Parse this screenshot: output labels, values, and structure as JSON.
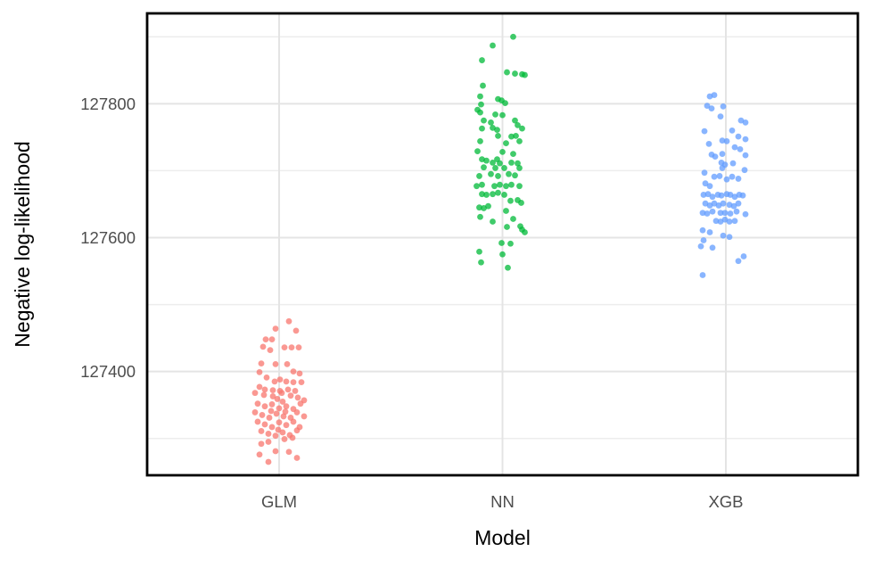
{
  "chart_data": {
    "type": "scatter",
    "subtype": "jittered-strip-plot",
    "title": "",
    "xlabel": "Model",
    "ylabel": "Negative log-likelihood",
    "categories": [
      "GLM",
      "NN",
      "XGB"
    ],
    "y_ticks": [
      127400,
      127600,
      127800
    ],
    "y_tick_labels": [
      "127400",
      "127600",
      "127800"
    ],
    "y_minor_ticks": [
      127300,
      127500,
      127700,
      127900
    ],
    "ylim": [
      127245,
      127935
    ],
    "grid": true,
    "legend": "none",
    "point_format": "[x_jitter_px, y_value]",
    "series": [
      {
        "name": "GLM",
        "color": "#F8766D",
        "points": [
          [
            11,
            127475
          ],
          [
            -4,
            127464
          ],
          [
            19,
            127461
          ],
          [
            -15,
            127448
          ],
          [
            -8,
            127448
          ],
          [
            -18,
            127437
          ],
          [
            -10,
            127432
          ],
          [
            6,
            127436
          ],
          [
            14,
            127436
          ],
          [
            22,
            127436
          ],
          [
            -20,
            127412
          ],
          [
            -4,
            127411
          ],
          [
            9,
            127411
          ],
          [
            -22,
            127399
          ],
          [
            16,
            127400
          ],
          [
            23,
            127397
          ],
          [
            -14,
            127391
          ],
          [
            -5,
            127385
          ],
          [
            1,
            127388
          ],
          [
            8,
            127385
          ],
          [
            16,
            127384
          ],
          [
            25,
            127384
          ],
          [
            -22,
            127377
          ],
          [
            -16,
            127373
          ],
          [
            -7,
            127372
          ],
          [
            1,
            127371
          ],
          [
            10,
            127373
          ],
          [
            18,
            127371
          ],
          [
            -27,
            127368
          ],
          [
            -17,
            127365
          ],
          [
            -7,
            127363
          ],
          [
            3,
            127368
          ],
          [
            13,
            127364
          ],
          [
            21,
            127361
          ],
          [
            28,
            127357
          ],
          [
            -24,
            127352
          ],
          [
            -16,
            127348
          ],
          [
            -8,
            127351
          ],
          [
            0,
            127345
          ],
          [
            8,
            127348
          ],
          [
            16,
            127344
          ],
          [
            24,
            127352
          ],
          [
            -2,
            127359
          ],
          [
            4,
            127355
          ],
          [
            -27,
            127339
          ],
          [
            -19,
            127335
          ],
          [
            -11,
            127331
          ],
          [
            -3,
            127337
          ],
          [
            5,
            127333
          ],
          [
            13,
            127331
          ],
          [
            20,
            127339
          ],
          [
            28,
            127333
          ],
          [
            -9,
            127341
          ],
          [
            7,
            127340
          ],
          [
            -24,
            127325
          ],
          [
            -16,
            127321
          ],
          [
            -8,
            127317
          ],
          [
            0,
            127324
          ],
          [
            8,
            127320
          ],
          [
            16,
            127325
          ],
          [
            23,
            127317
          ],
          [
            -1,
            127313
          ],
          [
            -20,
            127311
          ],
          [
            -12,
            127307
          ],
          [
            -4,
            127304
          ],
          [
            4,
            127309
          ],
          [
            12,
            127305
          ],
          [
            20,
            127312
          ],
          [
            15,
            127301
          ],
          [
            6,
            127299
          ],
          [
            -20,
            127292
          ],
          [
            -12,
            127295
          ],
          [
            -4,
            127281
          ],
          [
            11,
            127280
          ],
          [
            -22,
            127276
          ],
          [
            20,
            127271
          ],
          [
            -12,
            127265
          ]
        ]
      },
      {
        "name": "NN",
        "color": "#00BA38",
        "points": [
          [
            12,
            127900
          ],
          [
            -11,
            127887
          ],
          [
            -23,
            127865
          ],
          [
            5,
            127847
          ],
          [
            14,
            127845
          ],
          [
            22,
            127844
          ],
          [
            25,
            127843
          ],
          [
            -22,
            127827
          ],
          [
            -25,
            127811
          ],
          [
            -5,
            127807
          ],
          [
            -1,
            127805
          ],
          [
            3,
            127801
          ],
          [
            -24,
            127799
          ],
          [
            -28,
            127791
          ],
          [
            -25,
            127787
          ],
          [
            -8,
            127784
          ],
          [
            0,
            127783
          ],
          [
            14,
            127775
          ],
          [
            -21,
            127775
          ],
          [
            -13,
            127772
          ],
          [
            17,
            127768
          ],
          [
            22,
            127763
          ],
          [
            -11,
            127764
          ],
          [
            -6,
            127761
          ],
          [
            -23,
            127763
          ],
          [
            -5,
            127752
          ],
          [
            10,
            127751
          ],
          [
            15,
            127752
          ],
          [
            -25,
            127744
          ],
          [
            4,
            127741
          ],
          [
            19,
            127744
          ],
          [
            -28,
            127729
          ],
          [
            0,
            127728
          ],
          [
            12,
            127725
          ],
          [
            -18,
            127715
          ],
          [
            -11,
            127712
          ],
          [
            -3,
            127711
          ],
          [
            10,
            127712
          ],
          [
            17,
            127711
          ],
          [
            -23,
            127717
          ],
          [
            -6,
            127717
          ],
          [
            -21,
            127705
          ],
          [
            -8,
            127704
          ],
          [
            2,
            127704
          ],
          [
            19,
            127704
          ],
          [
            -26,
            127692
          ],
          [
            -13,
            127695
          ],
          [
            -5,
            127692
          ],
          [
            7,
            127695
          ],
          [
            14,
            127693
          ],
          [
            -29,
            127677
          ],
          [
            -23,
            127679
          ],
          [
            -9,
            127677
          ],
          [
            -3,
            127679
          ],
          [
            4,
            127677
          ],
          [
            10,
            127679
          ],
          [
            19,
            127677
          ],
          [
            -23,
            127665
          ],
          [
            -18,
            127664
          ],
          [
            -11,
            127665
          ],
          [
            -5,
            127667
          ],
          [
            2,
            127664
          ],
          [
            9,
            127655
          ],
          [
            17,
            127656
          ],
          [
            21,
            127652
          ],
          [
            -26,
            127645
          ],
          [
            -21,
            127644
          ],
          [
            -16,
            127647
          ],
          [
            4,
            127640
          ],
          [
            -25,
            127631
          ],
          [
            -11,
            127624
          ],
          [
            12,
            127628
          ],
          [
            5,
            127616
          ],
          [
            20,
            127617
          ],
          [
            22,
            127612
          ],
          [
            25,
            127608
          ],
          [
            -1,
            127592
          ],
          [
            9,
            127591
          ],
          [
            -26,
            127579
          ],
          [
            0,
            127575
          ],
          [
            -24,
            127563
          ],
          [
            6,
            127555
          ]
        ]
      },
      {
        "name": "XGB",
        "color": "#619CFF",
        "points": [
          [
            -18,
            127811
          ],
          [
            -13,
            127813
          ],
          [
            -21,
            127797
          ],
          [
            -16,
            127793
          ],
          [
            -3,
            127796
          ],
          [
            -6,
            127781
          ],
          [
            17,
            127775
          ],
          [
            22,
            127772
          ],
          [
            -24,
            127759
          ],
          [
            7,
            127760
          ],
          [
            14,
            127751
          ],
          [
            22,
            127747
          ],
          [
            -19,
            127740
          ],
          [
            -4,
            127745
          ],
          [
            1,
            127744
          ],
          [
            10,
            127735
          ],
          [
            16,
            127732
          ],
          [
            -16,
            127724
          ],
          [
            -12,
            127721
          ],
          [
            -4,
            127725
          ],
          [
            22,
            127723
          ],
          [
            -5,
            127712
          ],
          [
            -1,
            127709
          ],
          [
            -4,
            127704
          ],
          [
            8,
            127711
          ],
          [
            21,
            127701
          ],
          [
            -24,
            127697
          ],
          [
            -13,
            127691
          ],
          [
            -7,
            127692
          ],
          [
            1,
            127687
          ],
          [
            7,
            127691
          ],
          [
            14,
            127688
          ],
          [
            -23,
            127681
          ],
          [
            -18,
            127677
          ],
          [
            -25,
            127664
          ],
          [
            -20,
            127665
          ],
          [
            -15,
            127661
          ],
          [
            -9,
            127664
          ],
          [
            -5,
            127663
          ],
          [
            1,
            127665
          ],
          [
            5,
            127664
          ],
          [
            10,
            127661
          ],
          [
            15,
            127664
          ],
          [
            19,
            127663
          ],
          [
            -23,
            127651
          ],
          [
            -18,
            127648
          ],
          [
            -13,
            127651
          ],
          [
            -8,
            127648
          ],
          [
            -3,
            127651
          ],
          [
            4,
            127649
          ],
          [
            9,
            127647
          ],
          [
            14,
            127651
          ],
          [
            -26,
            127637
          ],
          [
            -21,
            127636
          ],
          [
            -15,
            127639
          ],
          [
            -6,
            127637
          ],
          [
            -1,
            127637
          ],
          [
            5,
            127636
          ],
          [
            12,
            127639
          ],
          [
            22,
            127635
          ],
          [
            -11,
            127625
          ],
          [
            -6,
            127624
          ],
          [
            -1,
            127627
          ],
          [
            4,
            127624
          ],
          [
            10,
            127625
          ],
          [
            -26,
            127611
          ],
          [
            -18,
            127608
          ],
          [
            -3,
            127603
          ],
          [
            4,
            127601
          ],
          [
            -25,
            127596
          ],
          [
            -15,
            127585
          ],
          [
            -28,
            127587
          ],
          [
            14,
            127565
          ],
          [
            20,
            127572
          ],
          [
            -26,
            127544
          ]
        ]
      }
    ]
  },
  "colors": {
    "background": "#ffffff",
    "panel_border": "#000000",
    "major_grid": "#e4e4e4",
    "minor_grid": "#ededed",
    "tick_label": "#4d4d4d",
    "axis_title": "#000000"
  }
}
